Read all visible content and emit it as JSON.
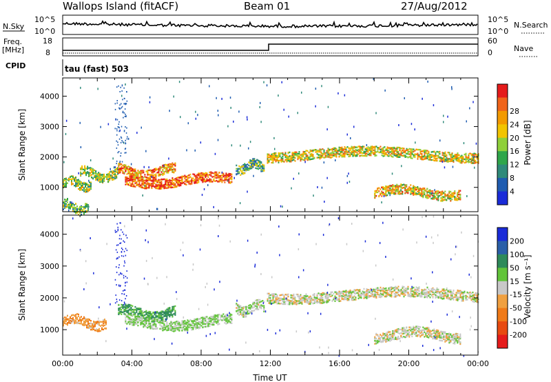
{
  "header": {
    "site": "Wallops Island (fitACF)",
    "beam": "Beam 01",
    "date": "27/Aug/2012"
  },
  "panels": {
    "noise": {
      "left_label": "N.Sky",
      "left_ticks": [
        "10^5",
        "10^0"
      ],
      "right_label": "N.Search",
      "right_ticks": [
        "10^5",
        "10^0"
      ]
    },
    "freq": {
      "left_label_line1": "Freq.",
      "left_label_line2": "[MHz]",
      "left_ticks": [
        "18",
        "8"
      ],
      "right_label": "Nave",
      "right_ticks": [
        "60",
        "0"
      ]
    },
    "cpid": {
      "label": "CPID",
      "value": "tau (fast) 503"
    }
  },
  "colors": {
    "power": [
      "#1a2bd8",
      "#1f5cb0",
      "#2f8a7a",
      "#2fa64a",
      "#8fd03a",
      "#f2c400",
      "#f39a00",
      "#f0641a",
      "#e51b1b"
    ],
    "velocity": [
      "#1a2bd8",
      "#2a5fa8",
      "#2e8a5a",
      "#62c43a",
      "#c8c8c8",
      "#f0a040",
      "#f07a18",
      "#e84a10",
      "#e51b1b"
    ]
  },
  "chart_data": [
    {
      "type": "heatmap",
      "quantity": "Power",
      "ylabel": "Slant Range [km]",
      "yticks": [
        1000,
        2000,
        3000,
        4000
      ],
      "ylim": [
        200,
        4600
      ],
      "xlim": [
        0,
        24
      ],
      "colorbar_label": "Power [dB]",
      "colorbar_ticks": [
        "4",
        "8",
        "12",
        "16",
        "20",
        "24",
        "28"
      ],
      "regions": [
        {
          "t_start": 0.0,
          "t_end": 1.6,
          "range_center": 1150,
          "level": 0.5
        },
        {
          "t_start": 1.0,
          "t_end": 3.2,
          "range_center": 1450,
          "level": 0.5
        },
        {
          "t_start": 3.2,
          "t_end": 6.5,
          "range_center": 1550,
          "level": 0.75
        },
        {
          "t_start": 3.6,
          "t_end": 9.8,
          "range_center": 1250,
          "level": 0.85
        },
        {
          "t_start": 10.0,
          "t_end": 11.6,
          "range_center": 1700,
          "level": 0.4
        },
        {
          "t_start": 11.8,
          "t_end": 24.0,
          "range_center": 2100,
          "level": 0.6
        },
        {
          "t_start": 18.0,
          "t_end": 23.0,
          "range_center": 850,
          "level": 0.65
        },
        {
          "t_start": 0.0,
          "t_end": 1.5,
          "range_center": 380,
          "level": 0.4
        }
      ],
      "peak_ranges_km": [
        1240,
        1200,
        1650,
        2300
      ]
    },
    {
      "type": "heatmap",
      "quantity": "Velocity",
      "ylabel": "Slant Range [km]",
      "yticks": [
        1000,
        2000,
        3000,
        4000
      ],
      "ylim": [
        200,
        4600
      ],
      "xlim": [
        0,
        24
      ],
      "xticks": [
        "00:00",
        "04:00",
        "08:00",
        "12:00",
        "16:00",
        "20:00",
        "00:00"
      ],
      "xlabel": "Time UT",
      "colorbar_label": "Velocity [m s⁻¹]",
      "colorbar_ticks": [
        "200",
        "100",
        "50",
        "15",
        "-15",
        "-50",
        "-100",
        "-200"
      ],
      "regions": [
        {
          "t_start": 0.0,
          "t_end": 2.5,
          "range_center": 1250,
          "velocity": -40
        },
        {
          "t_start": 3.2,
          "t_end": 6.5,
          "range_center": 1550,
          "velocity": 60
        },
        {
          "t_start": 3.6,
          "t_end": 9.8,
          "range_center": 1250,
          "velocity": 20
        },
        {
          "t_start": 10.0,
          "t_end": 11.6,
          "range_center": 1700,
          "velocity": 10
        },
        {
          "t_start": 11.8,
          "t_end": 24.0,
          "range_center": 2100,
          "velocity": 0
        },
        {
          "t_start": 18.0,
          "t_end": 23.0,
          "range_center": 850,
          "velocity": 0
        }
      ]
    }
  ]
}
